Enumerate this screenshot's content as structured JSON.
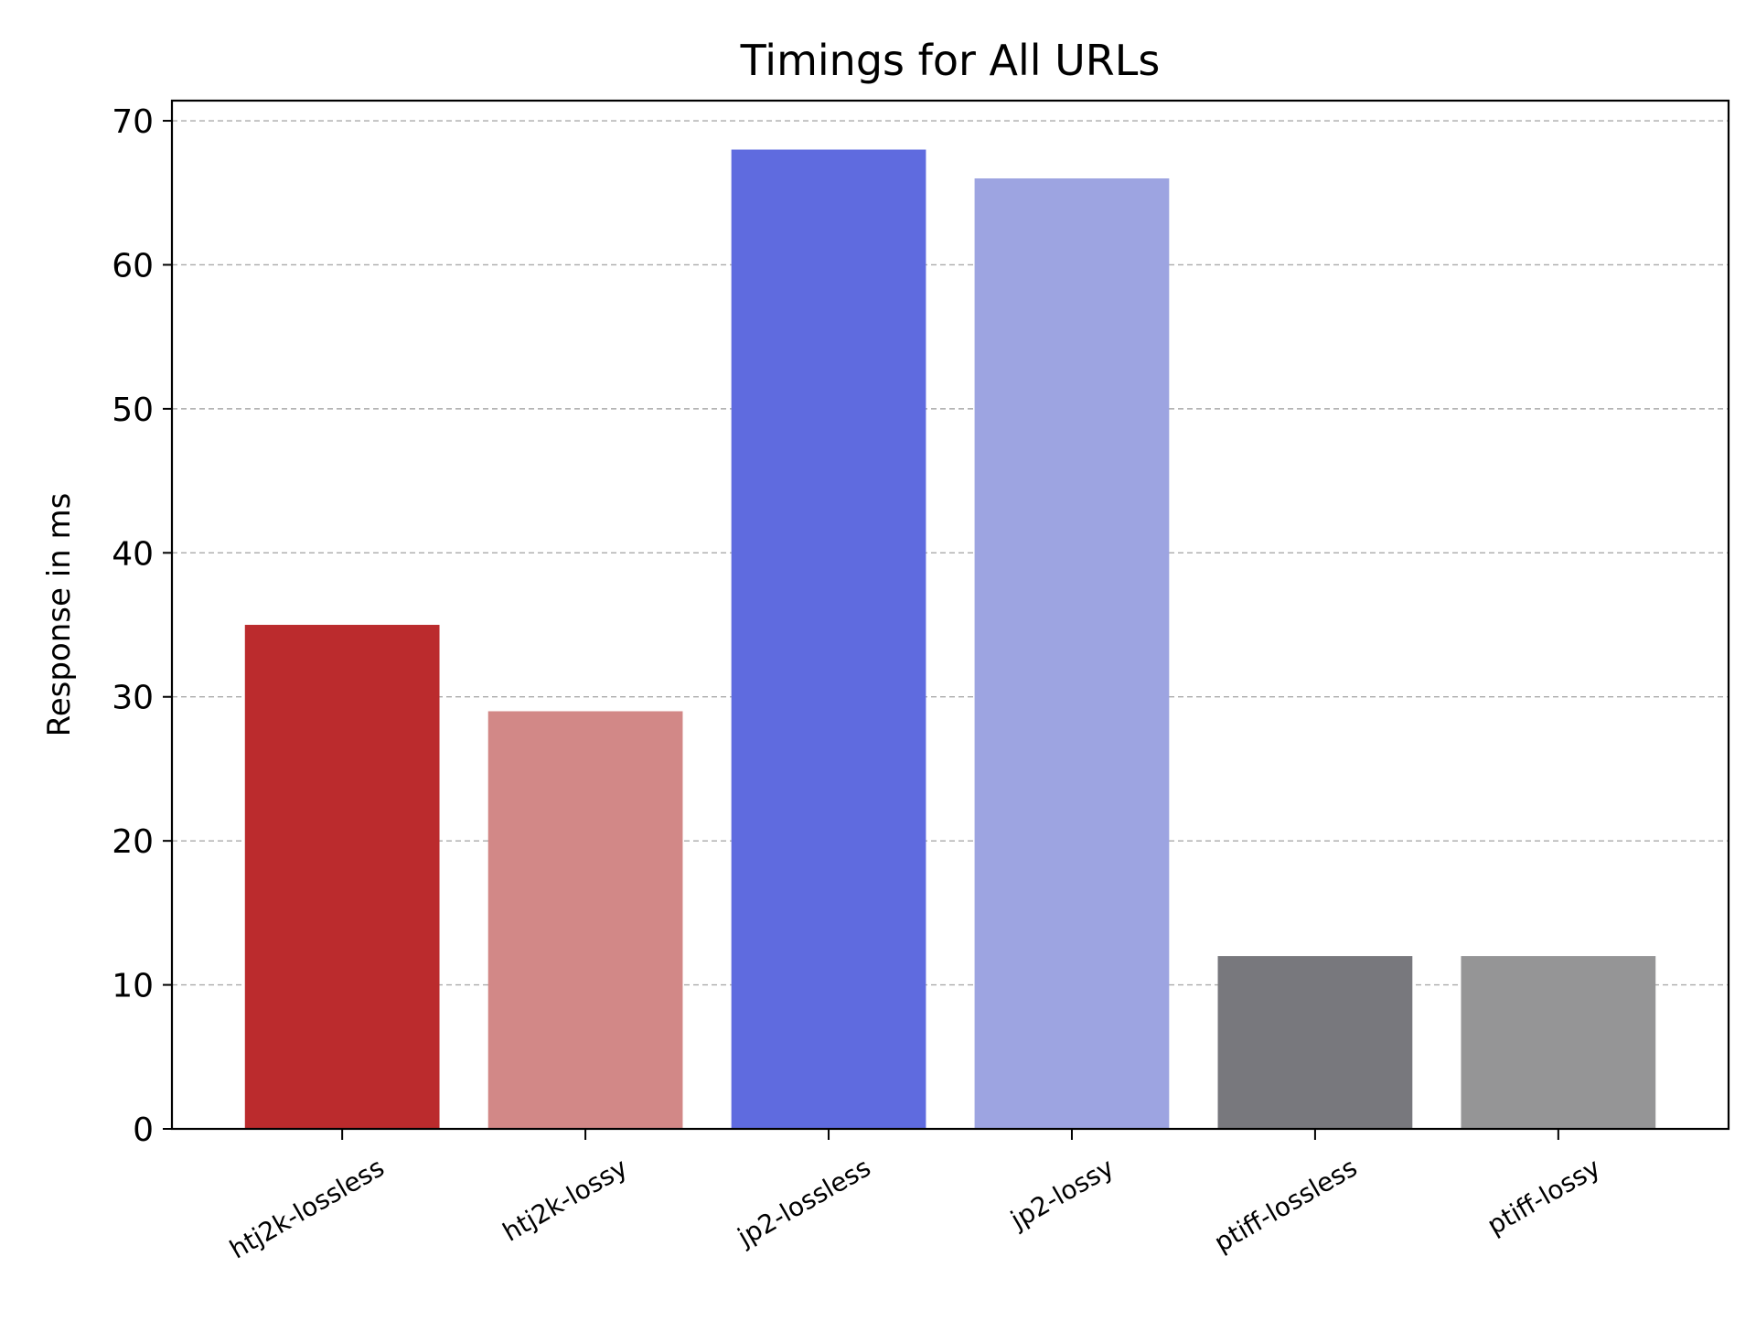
{
  "chart_data": {
    "type": "bar",
    "title": "Timings for All URLs",
    "xlabel": "",
    "ylabel": "Response in ms",
    "categories": [
      "htj2k-lossless",
      "htj2k-lossy",
      "jp2-lossless",
      "jp2-lossy",
      "ptiff-lossless",
      "ptiff-lossy"
    ],
    "values": [
      35,
      29,
      68,
      66,
      12,
      12
    ],
    "colors": [
      "#bb2b2d",
      "#d28887",
      "#5f6bdf",
      "#9da4e1",
      "#78787d",
      "#959596"
    ],
    "ylim": [
      0,
      71.4
    ],
    "yticks": [
      0,
      10,
      20,
      30,
      40,
      50,
      60,
      70
    ],
    "grid": "y-dashed",
    "legend": "none"
  }
}
